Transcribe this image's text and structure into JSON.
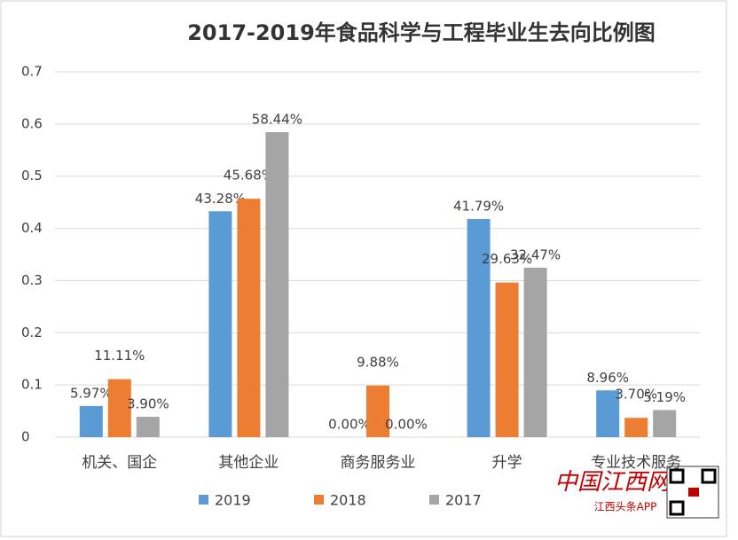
{
  "chart_data": {
    "type": "bar",
    "title": "2017-2019年食品科学与工程毕业生去向比例图",
    "categories": [
      "机关、国企",
      "其他企业",
      "商务服务业",
      "升学",
      "专业技术服务"
    ],
    "series": [
      {
        "name": "2019",
        "color": "#5b9bd5",
        "values": [
          0.0597,
          0.4328,
          0,
          0.4179,
          0.0896
        ],
        "value_labels": [
          "5.97%",
          "43.28%",
          "0.00%",
          "41.79%",
          "8.96%"
        ]
      },
      {
        "name": "2018",
        "color": "#ed7d31",
        "values": [
          0.1111,
          0.4568,
          0.0988,
          0.2963,
          0.037
        ],
        "value_labels": [
          "11.11%",
          "45.68%",
          "9.88%",
          "29.63%",
          "3.70%"
        ]
      },
      {
        "name": "2017",
        "color": "#a5a5a5",
        "values": [
          0.039,
          0.5844,
          0,
          0.3247,
          0.0519
        ],
        "value_labels": [
          "3.90%",
          "58.44%",
          "0.00%",
          "32.47%",
          "5.19%"
        ]
      }
    ],
    "ylim": [
      0,
      0.7
    ],
    "yticks": [
      0,
      0.1,
      0.2,
      0.3,
      0.4,
      0.5,
      0.6,
      0.7
    ],
    "grid": true,
    "legend": "bottom",
    "watermark": [
      "中国江西网",
      "江西头条APP"
    ]
  }
}
